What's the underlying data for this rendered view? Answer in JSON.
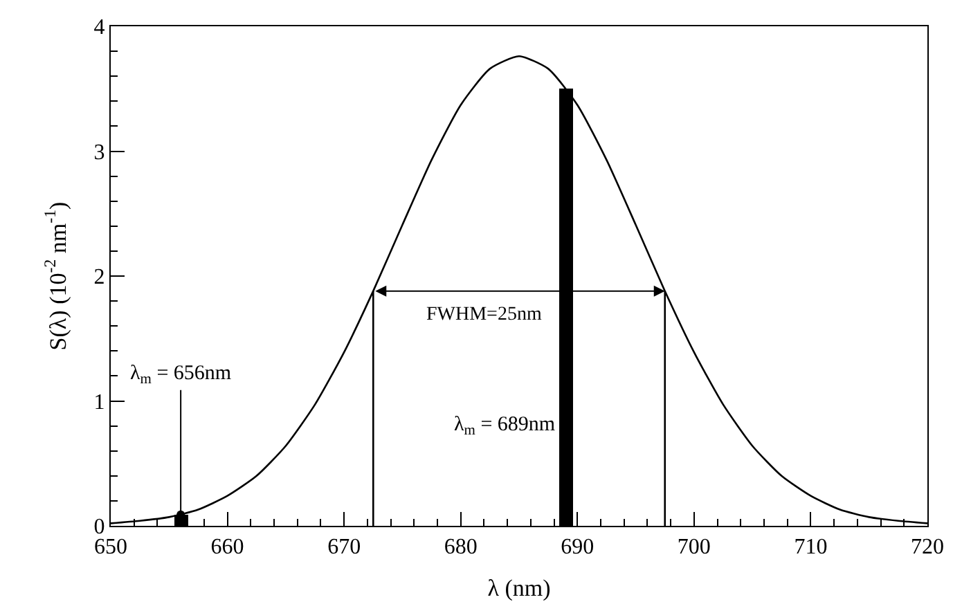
{
  "chart_data": {
    "type": "line",
    "xlabel": "λ (nm)",
    "ylabel": "S(λ) (10$^{-2}$ nm$^{-1}$)",
    "xlim": [
      650,
      720
    ],
    "ylim": [
      0,
      4
    ],
    "xticks": [
      650,
      {
        "value": 652,
        "label": null
      },
      {
        "value": 654,
        "label": null
      },
      {
        "value": 656,
        "label": null
      },
      {
        "value": 658,
        "label": null
      },
      660,
      {
        "value": 662,
        "label": null
      },
      {
        "value": 664,
        "label": null
      },
      {
        "value": 666,
        "label": null
      },
      {
        "value": 668,
        "label": null
      },
      670,
      {
        "value": 672,
        "label": null
      },
      {
        "value": 674,
        "label": null
      },
      {
        "value": 676,
        "label": null
      },
      {
        "value": 678,
        "label": null
      },
      680,
      {
        "value": 682,
        "label": null
      },
      {
        "value": 684,
        "label": null
      },
      {
        "value": 686,
        "label": null
      },
      {
        "value": 688,
        "label": null
      },
      690,
      {
        "value": 692,
        "label": null
      },
      {
        "value": 694,
        "label": null
      },
      {
        "value": 696,
        "label": null
      },
      {
        "value": 698,
        "label": null
      },
      700,
      {
        "value": 702,
        "label": null
      },
      {
        "value": 704,
        "label": null
      },
      {
        "value": 706,
        "label": null
      },
      {
        "value": 708,
        "label": null
      },
      710,
      {
        "value": 712,
        "label": null
      },
      {
        "value": 714,
        "label": null
      },
      {
        "value": 716,
        "label": null
      },
      {
        "value": 718,
        "label": null
      },
      720
    ],
    "yticks": [
      0,
      {
        "value": 0.2,
        "label": null
      },
      {
        "value": 0.4,
        "label": null
      },
      {
        "value": 0.6,
        "label": null
      },
      {
        "value": 0.8,
        "label": null
      },
      1,
      {
        "value": 1.2,
        "label": null
      },
      {
        "value": 1.4,
        "label": null
      },
      {
        "value": 1.6,
        "label": null
      },
      {
        "value": 1.8,
        "label": null
      },
      2,
      {
        "value": 2.2,
        "label": null
      },
      {
        "value": 2.4,
        "label": null
      },
      {
        "value": 2.6,
        "label": null
      },
      {
        "value": 2.8,
        "label": null
      },
      3,
      {
        "value": 3.2,
        "label": null
      },
      {
        "value": 3.4,
        "label": null
      },
      {
        "value": 3.6,
        "label": null
      },
      {
        "value": 3.8,
        "label": null
      },
      4
    ],
    "marker": "none",
    "line_style": "solid",
    "series": [
      {
        "color": "#000000",
        "x": [
          650,
          652.5,
          655,
          657.5,
          660,
          662.5,
          665,
          667.5,
          670,
          672.5,
          675,
          677.5,
          680,
          682.5,
          685,
          687.5,
          690,
          692.5,
          695,
          697.5,
          700,
          702.5,
          705,
          707.5,
          710,
          712.5,
          715,
          717.5,
          720
        ],
        "values": [
          0.02,
          0.04,
          0.07,
          0.13,
          0.24,
          0.4,
          0.64,
          0.97,
          1.39,
          1.88,
          2.41,
          2.93,
          3.37,
          3.66,
          3.76,
          3.66,
          3.37,
          2.93,
          2.41,
          1.88,
          1.39,
          0.97,
          0.64,
          0.4,
          0.24,
          0.13,
          0.07,
          0.04,
          0.02
        ]
      },
      {
        "type": "bar",
        "color": "#000000",
        "x": [
          656,
          689
        ],
        "values": [
          0.09,
          3.5
        ]
      },
      {
        "color": "#000000",
        "x": [
          672.5,
          672.5
        ],
        "values": [
          0,
          1.88
        ]
      },
      {
        "color": "#000000",
        "x": [
          697.5,
          697.5
        ],
        "values": [
          0,
          1.88
        ]
      }
    ],
    "annotations": [
      "FWHM=25nm",
      {
        "text": "λ$_{m}$ = 656nm",
        "x": 656,
        "y": 0.09
      },
      {
        "text": "λ$_{m}$ = 689nm",
        "x": 689,
        "y": 0.8
      }
    ]
  }
}
